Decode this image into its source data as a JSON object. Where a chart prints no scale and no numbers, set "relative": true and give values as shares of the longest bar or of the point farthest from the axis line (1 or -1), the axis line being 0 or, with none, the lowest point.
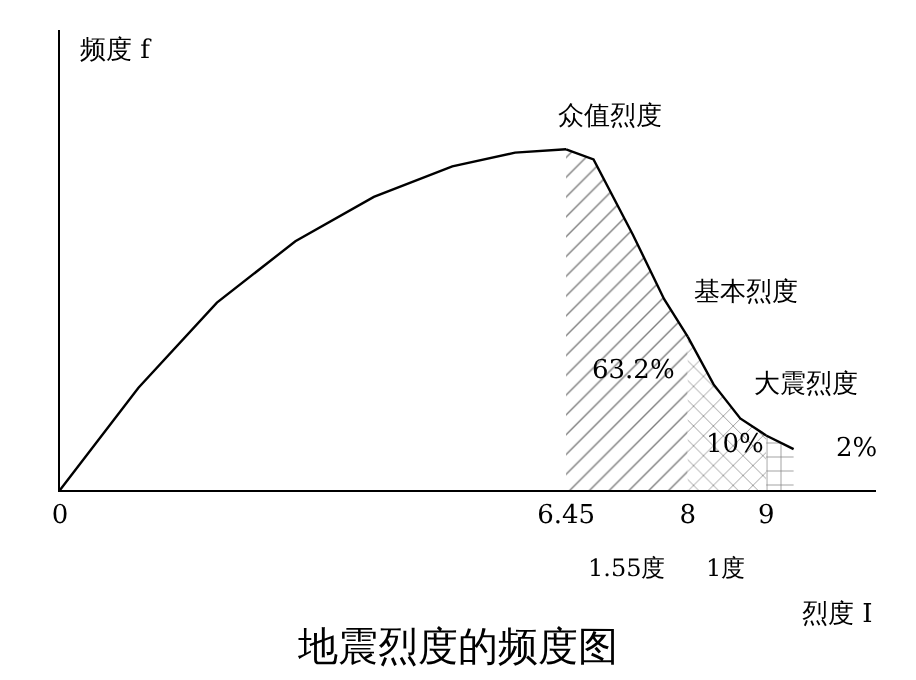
{
  "chart_data": {
    "type": "line",
    "title": "地震烈度的频度图",
    "xlabel": "烈度 I",
    "ylabel": "频度 f",
    "relative": true,
    "xlim": [
      0,
      10.4
    ],
    "xticks": [
      0,
      6.45,
      8,
      9
    ],
    "marker": "none",
    "line_style": "solid",
    "series": [
      {
        "color": "#000000",
        "x": [
          0,
          1,
          2,
          3,
          4,
          5,
          5.8,
          6.45
        ],
        "values": [
          0,
          0.3,
          0.55,
          0.73,
          0.86,
          0.95,
          0.99,
          1
        ]
      },
      {
        "type": "area",
        "color": "#000000",
        "x": [
          6.45,
          6.8,
          7.3,
          7.7,
          8
        ],
        "values": [
          1,
          0.97,
          0.75,
          0.56,
          0.45
        ]
      },
      {
        "type": "area",
        "color": "#000000",
        "x": [
          8,
          8.33,
          8.67,
          9
        ],
        "values": [
          0.45,
          0.31,
          0.21,
          0.16
        ]
      },
      {
        "type": "area",
        "color": "#000000",
        "x": [
          9,
          9.35
        ],
        "values": [
          0.16,
          0.12
        ]
      }
    ],
    "annotations": [
      "众值烈度",
      "基本烈度",
      "大震烈度",
      "63.2%",
      "10%",
      "2%",
      "1.55度",
      "1度"
    ]
  }
}
